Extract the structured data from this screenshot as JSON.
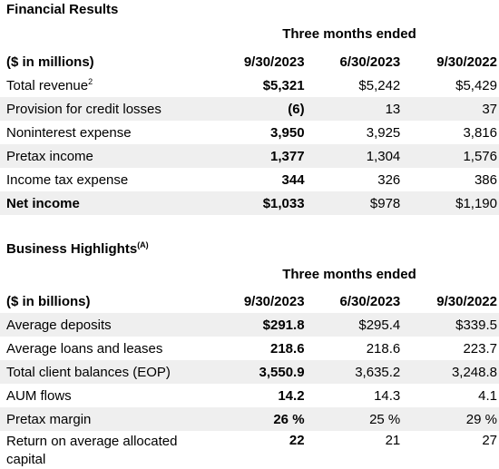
{
  "financial": {
    "title": "Financial Results",
    "period_header": "Three months ended",
    "unit_label": "($ in millions)",
    "columns": [
      "9/30/2023",
      "6/30/2023",
      "9/30/2022"
    ],
    "rows": [
      {
        "label": "Total revenue",
        "sup": "2",
        "v1": "$5,321",
        "v2": "$5,242",
        "v3": "$5,429"
      },
      {
        "label": "Provision for credit losses",
        "sup": "",
        "v1": "(6)",
        "v2": "13",
        "v3": "37"
      },
      {
        "label": "Noninterest expense",
        "sup": "",
        "v1": "3,950",
        "v2": "3,925",
        "v3": "3,816"
      },
      {
        "label": "Pretax income",
        "sup": "",
        "v1": "1,377",
        "v2": "1,304",
        "v3": "1,576"
      },
      {
        "label": "Income tax expense",
        "sup": "",
        "v1": "344",
        "v2": "326",
        "v3": "386"
      },
      {
        "label": "Net income",
        "sup": "",
        "v1": "$1,033",
        "v2": "$978",
        "v3": "$1,190"
      }
    ]
  },
  "business": {
    "title": "Business Highlights",
    "title_sup": "(A)",
    "period_header": "Three months ended",
    "unit_label": "($ in billions)",
    "columns": [
      "9/30/2023",
      "6/30/2023",
      "9/30/2022"
    ],
    "rows": [
      {
        "label": "Average deposits",
        "v1": "$291.8",
        "v2": "$295.4",
        "v3": "$339.5"
      },
      {
        "label": "Average loans and leases",
        "v1": "218.6",
        "v2": "218.6",
        "v3": "223.7"
      },
      {
        "label": "Total client balances (EOP)",
        "v1": "3,550.9",
        "v2": "3,635.2",
        "v3": "3,248.8"
      },
      {
        "label": "AUM flows",
        "v1": "14.2",
        "v2": "14.3",
        "v3": "4.1"
      },
      {
        "label": "Pretax margin",
        "v1": "26 %",
        "v2": "25 %",
        "v3": "29 %"
      },
      {
        "label": "Return on average allocated capital",
        "v1": "22",
        "v2": "21",
        "v3": "27"
      }
    ]
  }
}
